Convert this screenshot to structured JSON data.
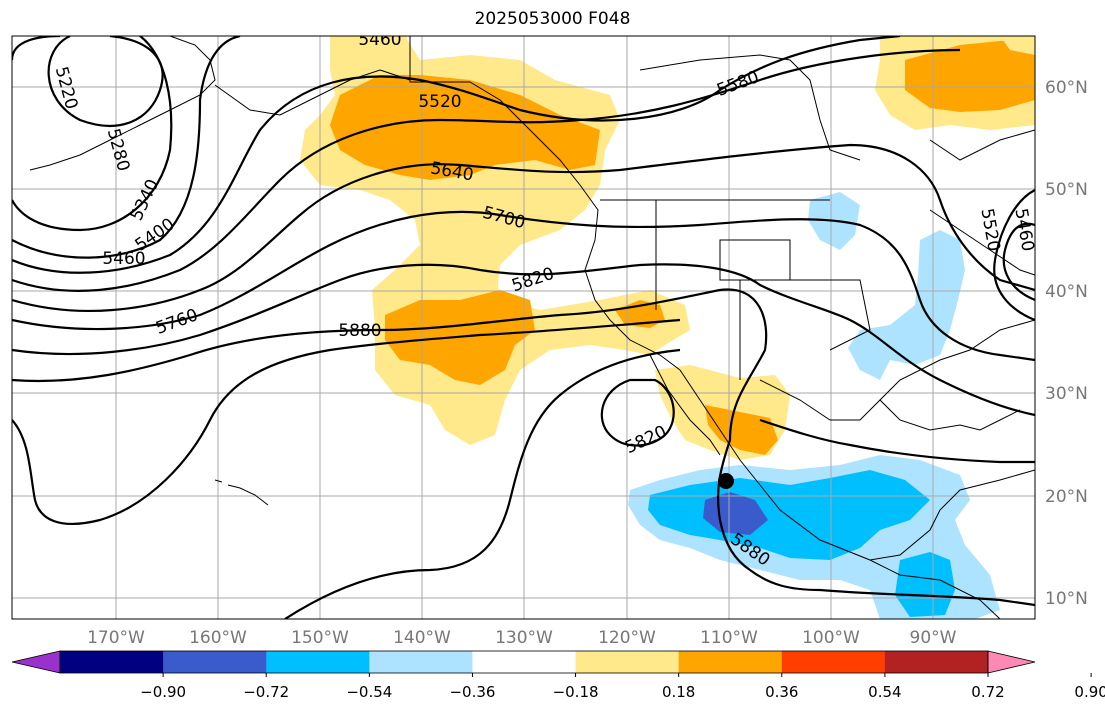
{
  "title": "2025053000 F048",
  "lon_labels": [
    "170°W",
    "160°W",
    "150°W",
    "140°W",
    "130°W",
    "120°W",
    "110°W",
    "100°W",
    "90°W"
  ],
  "lat_labels": [
    "60°N",
    "50°N",
    "40°N",
    "30°N",
    "20°N",
    "10°N"
  ],
  "contour_labels": [
    "5460",
    "5220",
    "5280",
    "5340",
    "5400",
    "5460",
    "5520",
    "5580",
    "5640",
    "5700",
    "5760",
    "5820",
    "5880",
    "5820",
    "5880",
    "5520",
    "5460"
  ],
  "colorbar": {
    "colors": [
      "#9932cc",
      "#000080",
      "#3a5bcc",
      "#00bfff",
      "#aee3ff",
      "#ffffff",
      "#ffe98a",
      "#ffa500",
      "#ff3e00",
      "#b22222",
      "#ff89b4"
    ],
    "ticks": [
      "−0.90",
      "−0.72",
      "−0.54",
      "−0.36",
      "−0.18",
      "0.18",
      "0.36",
      "0.54",
      "0.72",
      "0.90"
    ]
  }
}
